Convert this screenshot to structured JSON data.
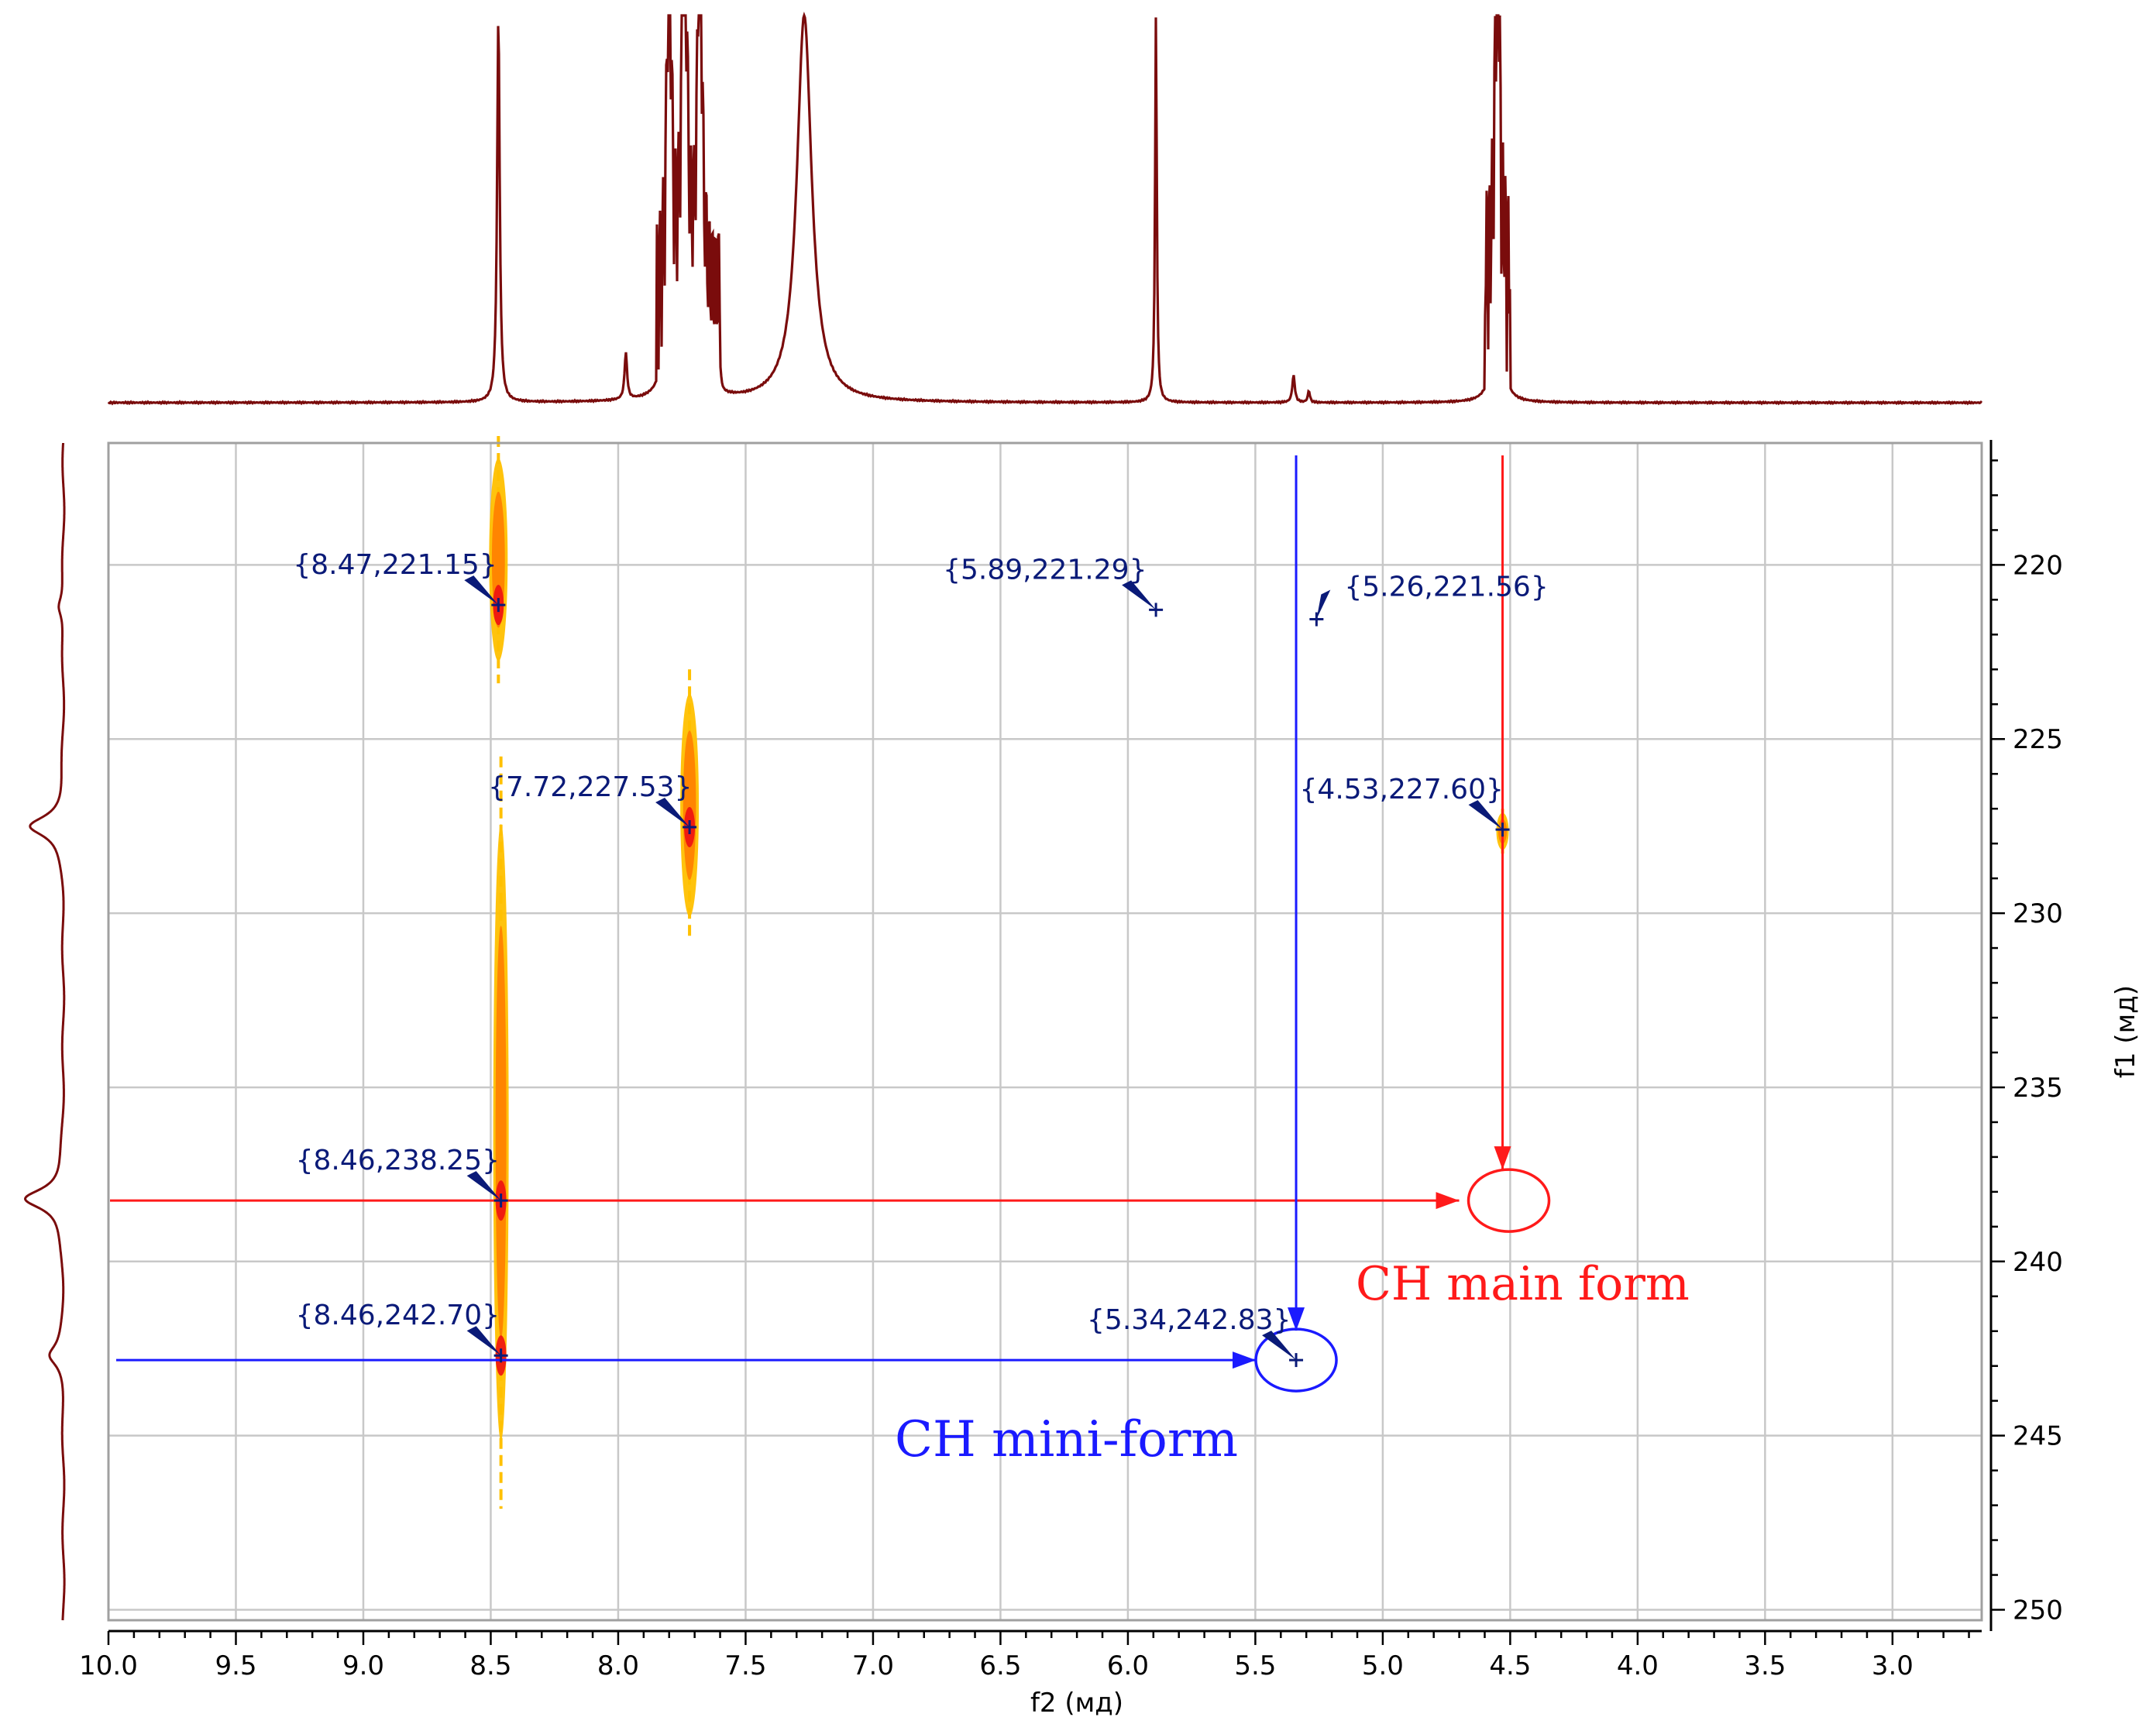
{
  "chart_data": {
    "type": "2d-nmr-contour",
    "xlabel": "f2 (мд)",
    "ylabel": "f1 (мд)",
    "xlim": [
      10.0,
      2.65
    ],
    "ylim": [
      216.5,
      250.3
    ],
    "x_ticks": [
      "10.0",
      "9.5",
      "9.0",
      "8.5",
      "8.0",
      "7.5",
      "7.0",
      "6.5",
      "6.0",
      "5.5",
      "5.0",
      "4.5",
      "4.0",
      "3.5",
      "3.0"
    ],
    "y_ticks": [
      "220",
      "225",
      "230",
      "235",
      "240",
      "245",
      "250"
    ],
    "grid": true,
    "peaks": [
      {
        "f2": 8.47,
        "f1": 221.15,
        "label": "{8.47,221.15}"
      },
      {
        "f2": 5.89,
        "f1": 221.29,
        "label": "{5.89,221.29}"
      },
      {
        "f2": 5.26,
        "f1": 221.56,
        "label": "{5.26,221.56}"
      },
      {
        "f2": 7.72,
        "f1": 227.53,
        "label": "{7.72,227.53}"
      },
      {
        "f2": 4.53,
        "f1": 227.6,
        "label": "{4.53,227.60}"
      },
      {
        "f2": 8.46,
        "f1": 238.25,
        "label": "{8.46,238.25}"
      },
      {
        "f2": 8.46,
        "f1": 242.7,
        "label": "{8.46,242.70}"
      },
      {
        "f2": 5.34,
        "f1": 242.83,
        "label": "{5.34,242.83}"
      }
    ],
    "contours": [
      {
        "f2": 8.47,
        "f1_range": [
          216.3,
          223.4
        ],
        "intensity": "medium"
      },
      {
        "f2": 7.72,
        "f1_range": [
          223.0,
          230.8
        ],
        "intensity": "medium"
      },
      {
        "f2": 4.53,
        "f1_range": [
          227.0,
          228.3
        ],
        "intensity": "weak"
      },
      {
        "f2": 8.46,
        "f1_range": [
          225.5,
          247.1
        ],
        "intensity": "strong"
      }
    ],
    "f2_projection_peaks": [
      {
        "ppm": 8.47,
        "height": 1.0
      },
      {
        "ppm": 7.97,
        "height": 0.12
      },
      {
        "ppm": 7.8,
        "height": 1.0
      },
      {
        "ppm": 7.74,
        "height": 1.0
      },
      {
        "ppm": 7.68,
        "height": 1.0
      },
      {
        "ppm": 7.6,
        "height": 0.06
      },
      {
        "ppm": 7.27,
        "height": 1.0
      },
      {
        "ppm": 5.89,
        "height": 1.0
      },
      {
        "ppm": 5.35,
        "height": 0.07
      },
      {
        "ppm": 5.29,
        "height": 0.03
      },
      {
        "ppm": 4.55,
        "height": 1.0
      }
    ],
    "f1_projection_peaks": [
      {
        "ppm": 221.2,
        "height": 0.05
      },
      {
        "ppm": 227.5,
        "height": 0.3
      },
      {
        "ppm": 238.2,
        "height": 0.35
      },
      {
        "ppm": 242.7,
        "height": 0.12
      }
    ],
    "annotations": {
      "main": {
        "text": "CH main form",
        "color": "#ff1a1a",
        "circle": {
          "f2": 4.53,
          "f1": 238.25
        },
        "from_peak": {
          "f2": 8.46,
          "f1": 238.25
        },
        "from_top": {
          "f2": 4.53
        }
      },
      "mini": {
        "text": "CH mini-form",
        "color": "#1a1aff",
        "circle": {
          "f2": 5.34,
          "f1": 242.83
        },
        "from_peak": {
          "f2": 8.46,
          "f1": 242.7
        },
        "from_top": {
          "f2": 5.34
        }
      }
    },
    "colors": {
      "spectrum": "#7a0c0c",
      "label": "#0a1a78",
      "contour_weak": "#ffc000",
      "contour_mid": "#ff7a00",
      "contour_strong": "#ee1111",
      "grid": "#c8c8c8"
    }
  }
}
